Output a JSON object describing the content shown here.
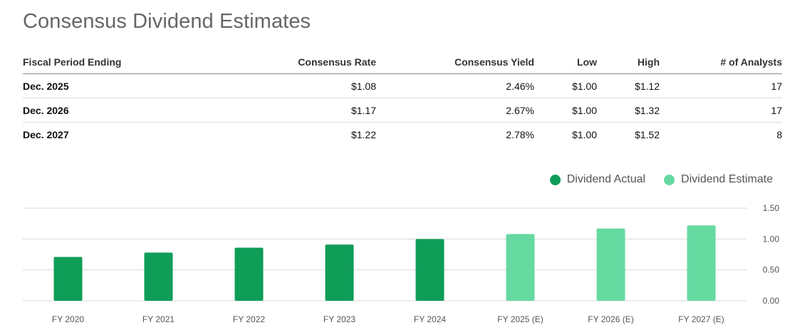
{
  "title": "Consensus Dividend Estimates",
  "table": {
    "headers": [
      "Fiscal Period Ending",
      "Consensus Rate",
      "Consensus Yield",
      "Low",
      "High",
      "# of Analysts"
    ],
    "rows": [
      [
        "Dec. 2025",
        "$1.08",
        "2.46%",
        "$1.00",
        "$1.12",
        "17"
      ],
      [
        "Dec. 2026",
        "$1.17",
        "2.67%",
        "$1.00",
        "$1.32",
        "17"
      ],
      [
        "Dec. 2027",
        "$1.22",
        "2.78%",
        "$1.00",
        "$1.52",
        "8"
      ]
    ]
  },
  "legend": {
    "actual": "Dividend Actual",
    "estimate": "Dividend Estimate"
  },
  "colors": {
    "actual": "#0f9d58",
    "estimate": "#66d9a1",
    "grid": "#d9d9d9"
  },
  "chart_data": {
    "type": "bar",
    "categories": [
      "FY 2020",
      "FY 2021",
      "FY 2022",
      "FY 2023",
      "FY 2024",
      "FY 2025 (E)",
      "FY 2026 (E)",
      "FY 2027 (E)"
    ],
    "series": [
      {
        "name": "Dividend Actual",
        "values": [
          0.71,
          0.78,
          0.86,
          0.91,
          1.0,
          null,
          null,
          null
        ]
      },
      {
        "name": "Dividend Estimate",
        "values": [
          null,
          null,
          null,
          null,
          null,
          1.08,
          1.17,
          1.22
        ]
      }
    ],
    "yticks": [
      "0.00",
      "0.50",
      "1.00",
      "1.50"
    ],
    "ylim": [
      0,
      1.5
    ],
    "grid": true,
    "legend_position": "top-right",
    "y_axis_side": "right"
  }
}
